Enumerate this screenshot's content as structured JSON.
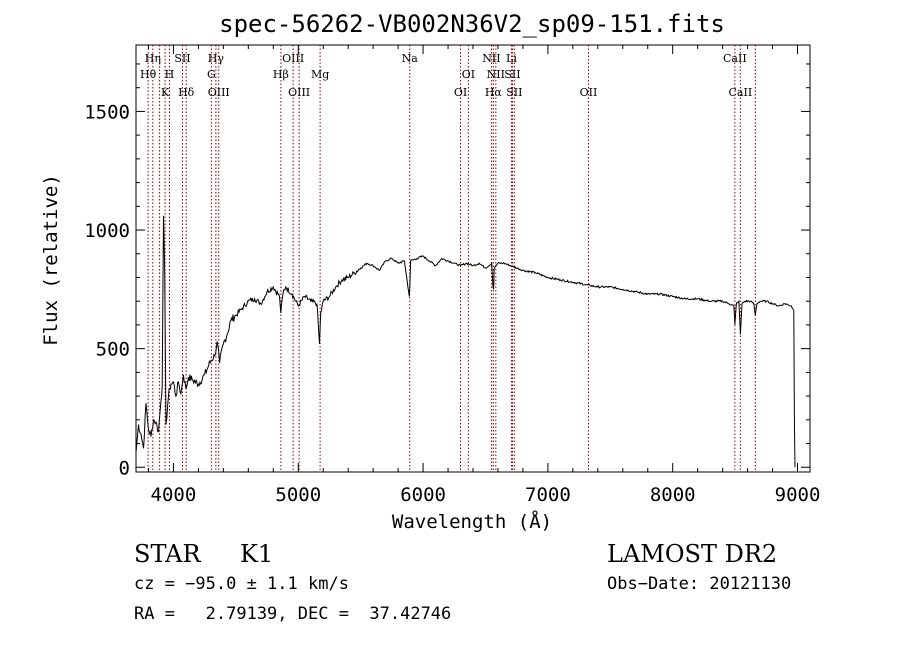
{
  "chart_data": {
    "type": "line",
    "title": "spec-56262-VB002N36V2_sp09-151.fits",
    "xlabel": "Wavelength (Å)",
    "ylabel": "Flux (relative)",
    "xlim": [
      3700,
      9100
    ],
    "ylim": [
      -20,
      1780
    ],
    "xticks": [
      4000,
      5000,
      6000,
      7000,
      8000,
      9000
    ],
    "yticks": [
      0,
      500,
      1000,
      1500
    ],
    "grid": false,
    "line_color": "#000000",
    "marker_color": "#8b0000",
    "series": [
      {
        "x": [
          3700,
          3720,
          3740,
          3760,
          3780,
          3800,
          3820,
          3840,
          3860,
          3880,
          3900,
          3910,
          3920,
          3930,
          3940,
          3960,
          3970,
          3980,
          4000,
          4020,
          4040,
          4060,
          4080,
          4100,
          4120,
          4150,
          4200,
          4250,
          4300,
          4330,
          4350,
          4370,
          4400,
          4430,
          4460,
          4500,
          4550,
          4600,
          4650,
          4700,
          4750,
          4800,
          4850,
          4860,
          4880,
          4900,
          4950,
          5000,
          5050,
          5100,
          5150,
          5170,
          5180,
          5200,
          5250,
          5300,
          5350,
          5400,
          5450,
          5500,
          5550,
          5600,
          5650,
          5700,
          5750,
          5800,
          5850,
          5890,
          5895,
          5900,
          5950,
          6000,
          6050,
          6100,
          6150,
          6200,
          6250,
          6300,
          6350,
          6400,
          6450,
          6500,
          6550,
          6560,
          6565,
          6570,
          6600,
          6650,
          6700,
          6750,
          6800,
          6900,
          7000,
          7100,
          7200,
          7300,
          7400,
          7500,
          7600,
          7700,
          7800,
          7900,
          8000,
          8100,
          8200,
          8300,
          8400,
          8450,
          8490,
          8498,
          8510,
          8530,
          8542,
          8555,
          8580,
          8620,
          8650,
          8662,
          8675,
          8700,
          8750,
          8800,
          8850,
          8900,
          8950,
          8970,
          8975,
          8980
        ],
        "y": [
          60,
          180,
          140,
          80,
          270,
          160,
          130,
          200,
          190,
          150,
          280,
          340,
          1060,
          820,
          180,
          300,
          330,
          350,
          360,
          300,
          360,
          310,
          390,
          330,
          380,
          370,
          350,
          390,
          450,
          470,
          530,
          440,
          520,
          560,
          620,
          640,
          670,
          700,
          710,
          690,
          740,
          760,
          720,
          650,
          740,
          760,
          730,
          680,
          720,
          700,
          690,
          520,
          650,
          700,
          720,
          760,
          790,
          800,
          820,
          840,
          860,
          850,
          830,
          870,
          880,
          860,
          870,
          720,
          780,
          870,
          880,
          890,
          870,
          850,
          880,
          870,
          860,
          850,
          860,
          850,
          860,
          840,
          860,
          760,
          750,
          840,
          860,
          860,
          850,
          840,
          830,
          820,
          800,
          790,
          780,
          770,
          760,
          760,
          750,
          740,
          730,
          730,
          720,
          710,
          710,
          700,
          700,
          690,
          680,
          600,
          690,
          700,
          560,
          690,
          700,
          700,
          690,
          640,
          690,
          700,
          700,
          690,
          680,
          690,
          680,
          660,
          200,
          0
        ]
      }
    ],
    "line_markers": [
      {
        "wl": 3797,
        "label": "Hθ",
        "row": 2
      },
      {
        "wl": 3835,
        "label": "Hη",
        "row": 1
      },
      {
        "wl": 3889,
        "label": "",
        "row": 0
      },
      {
        "wl": 3933,
        "label": "K",
        "row": 3
      },
      {
        "wl": 3968,
        "label": "H",
        "row": 2
      },
      {
        "wl": 4072,
        "label": "SII",
        "row": 1
      },
      {
        "wl": 4102,
        "label": "Hδ",
        "row": 3
      },
      {
        "wl": 4304,
        "label": "G",
        "row": 2
      },
      {
        "wl": 4340,
        "label": "Hγ",
        "row": 1
      },
      {
        "wl": 4363,
        "label": "OIII",
        "row": 3
      },
      {
        "wl": 4861,
        "label": "Hβ",
        "row": 2
      },
      {
        "wl": 4959,
        "label": "OIII",
        "row": 1
      },
      {
        "wl": 5007,
        "label": "OIII",
        "row": 3
      },
      {
        "wl": 5175,
        "label": "Mg",
        "row": 2
      },
      {
        "wl": 5893,
        "label": "Na",
        "row": 1
      },
      {
        "wl": 6300,
        "label": "OI",
        "row": 3
      },
      {
        "wl": 6363,
        "label": "OI",
        "row": 2
      },
      {
        "wl": 6548,
        "label": "NII",
        "row": 1
      },
      {
        "wl": 6563,
        "label": "Hα",
        "row": 3
      },
      {
        "wl": 6583,
        "label": "NII",
        "row": 2
      },
      {
        "wl": 6708,
        "label": "Li",
        "row": 1
      },
      {
        "wl": 6716,
        "label": "SII",
        "row": 2
      },
      {
        "wl": 6731,
        "label": "SII",
        "row": 3
      },
      {
        "wl": 7325,
        "label": "OII",
        "row": 3
      },
      {
        "wl": 8498,
        "label": "CaII",
        "row": 1
      },
      {
        "wl": 8542,
        "label": "CaII",
        "row": 3
      },
      {
        "wl": 8662,
        "label": "",
        "row": 0
      }
    ]
  },
  "info": {
    "object_class": "STAR",
    "subclass": "K1",
    "survey": "LAMOST DR2",
    "cz": "cz = −95.0 ± 1.1 km/s",
    "obs_date": "Obs−Date: 20121130",
    "coords": "RA =   2.79139, DEC =  37.42746"
  }
}
